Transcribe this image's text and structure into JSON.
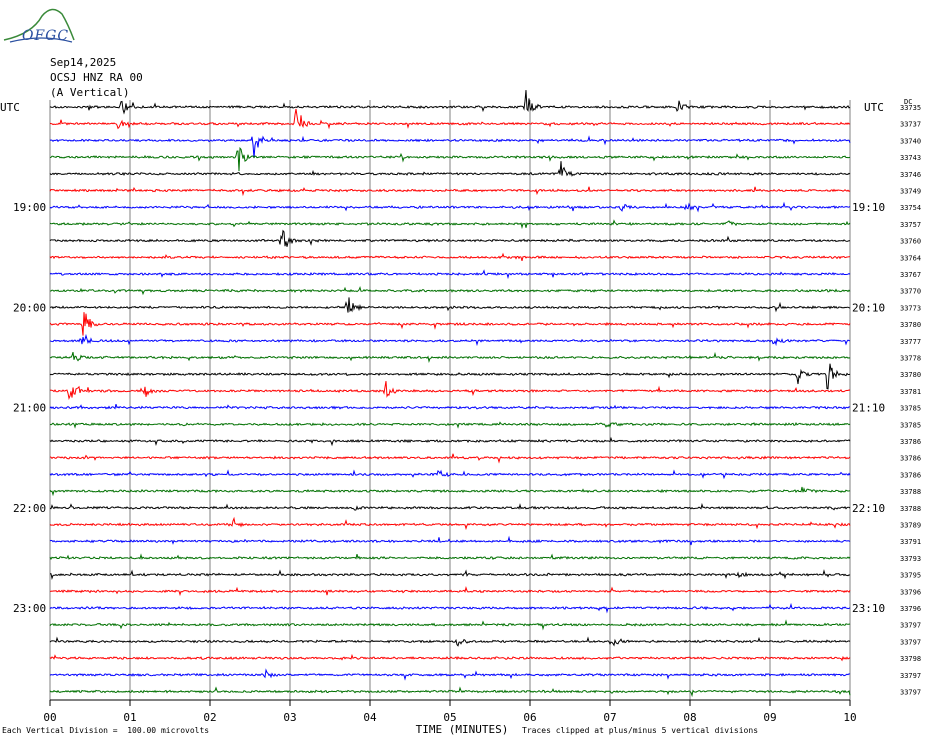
{
  "header": {
    "logo_text": "OFGC",
    "date": "Sep14,2025",
    "station": "OCSJ HNZ RA 00",
    "component": "(A Vertical)"
  },
  "axis": {
    "left_label": "UTC",
    "right_label": "UTC",
    "right_top_label": "DC",
    "xlabel": "TIME (MINUTES)",
    "xticks": [
      "00",
      "01",
      "02",
      "03",
      "04",
      "05",
      "06",
      "07",
      "08",
      "09",
      "10"
    ]
  },
  "footer": {
    "scale_note": "Each Vertical Division =  100.00 microvolts",
    "clip_note": "Traces clipped at plus/minus 5 vertical divisions"
  },
  "colors": {
    "black": "#000000",
    "red": "#ff0000",
    "blue": "#0000ff",
    "green": "#007000",
    "grid": "#808080"
  },
  "chart_data": {
    "type": "line",
    "title": "OCSJ HNZ RA 00 (A Vertical)",
    "xlabel": "TIME (MINUTES)",
    "xlim": [
      0,
      10
    ],
    "color_cycle": [
      "black",
      "red",
      "blue",
      "green"
    ],
    "traces": [
      {
        "left": "",
        "right": "",
        "dc": "33735",
        "events": [
          {
            "t": 0.9,
            "a": 8
          },
          {
            "t": 5.95,
            "a": 20
          },
          {
            "t": 7.85,
            "a": 7
          }
        ]
      },
      {
        "left": "",
        "right": "",
        "dc": "33737",
        "events": [
          {
            "t": 0.85,
            "a": 4
          },
          {
            "t": 3.08,
            "a": 22
          }
        ]
      },
      {
        "left": "",
        "right": "",
        "dc": "33740",
        "events": [
          {
            "t": 2.55,
            "a": 18
          }
        ]
      },
      {
        "left": "",
        "right": "",
        "dc": "33743",
        "events": [
          {
            "t": 2.35,
            "a": 16
          }
        ]
      },
      {
        "left": "",
        "right": "",
        "dc": "33746",
        "events": [
          {
            "t": 6.38,
            "a": 14
          }
        ]
      },
      {
        "left": "",
        "right": "",
        "dc": "33749",
        "events": []
      },
      {
        "left": "19:00",
        "right": "19:10",
        "dc": "33754",
        "events": [
          {
            "t": 7.15,
            "a": 4
          },
          {
            "t": 7.95,
            "a": 4
          }
        ]
      },
      {
        "left": "",
        "right": "",
        "dc": "33757",
        "events": [
          {
            "t": 8.45,
            "a": 5
          }
        ]
      },
      {
        "left": "",
        "right": "",
        "dc": "33760",
        "events": [
          {
            "t": 2.9,
            "a": 20
          }
        ]
      },
      {
        "left": "",
        "right": "",
        "dc": "33764",
        "events": []
      },
      {
        "left": "",
        "right": "",
        "dc": "33767",
        "events": []
      },
      {
        "left": "",
        "right": "",
        "dc": "33770",
        "events": []
      },
      {
        "left": "20:00",
        "right": "20:10",
        "dc": "33773",
        "events": [
          {
            "t": 3.72,
            "a": 14
          }
        ]
      },
      {
        "left": "",
        "right": "",
        "dc": "33780",
        "events": [
          {
            "t": 0.42,
            "a": 18
          }
        ]
      },
      {
        "left": "",
        "right": "",
        "dc": "33777",
        "events": [
          {
            "t": 0.4,
            "a": 10
          },
          {
            "t": 9.05,
            "a": 4
          }
        ]
      },
      {
        "left": "",
        "right": "",
        "dc": "33778",
        "events": [
          {
            "t": 0.3,
            "a": 8
          }
        ]
      },
      {
        "left": "",
        "right": "",
        "dc": "33780",
        "events": [
          {
            "t": 9.35,
            "a": 6
          },
          {
            "t": 9.72,
            "a": 20
          }
        ]
      },
      {
        "left": "",
        "right": "",
        "dc": "33781",
        "events": [
          {
            "t": 0.25,
            "a": 14
          },
          {
            "t": 1.2,
            "a": 8
          },
          {
            "t": 4.2,
            "a": 10
          }
        ]
      },
      {
        "left": "21:00",
        "right": "21:10",
        "dc": "33785",
        "events": []
      },
      {
        "left": "",
        "right": "",
        "dc": "33785",
        "events": [
          {
            "t": 6.95,
            "a": 5
          }
        ]
      },
      {
        "left": "",
        "right": "",
        "dc": "33786",
        "events": []
      },
      {
        "left": "",
        "right": "",
        "dc": "33786",
        "events": []
      },
      {
        "left": "",
        "right": "",
        "dc": "33786",
        "events": [
          {
            "t": 4.85,
            "a": 8
          }
        ]
      },
      {
        "left": "",
        "right": "",
        "dc": "33788",
        "events": [
          {
            "t": 9.4,
            "a": 4
          }
        ]
      },
      {
        "left": "22:00",
        "right": "22:10",
        "dc": "33788",
        "events": [
          {
            "t": 3.8,
            "a": 3
          }
        ]
      },
      {
        "left": "",
        "right": "",
        "dc": "33789",
        "events": [
          {
            "t": 2.3,
            "a": 6
          }
        ]
      },
      {
        "left": "",
        "right": "",
        "dc": "33791",
        "events": []
      },
      {
        "left": "",
        "right": "",
        "dc": "33793",
        "events": []
      },
      {
        "left": "",
        "right": "",
        "dc": "33795",
        "events": [
          {
            "t": 8.6,
            "a": 3
          }
        ]
      },
      {
        "left": "",
        "right": "",
        "dc": "33796",
        "events": []
      },
      {
        "left": "23:00",
        "right": "23:10",
        "dc": "33796",
        "events": []
      },
      {
        "left": "",
        "right": "",
        "dc": "33797",
        "events": []
      },
      {
        "left": "",
        "right": "",
        "dc": "33797",
        "events": [
          {
            "t": 5.1,
            "a": 5
          },
          {
            "t": 7.05,
            "a": 4
          }
        ]
      },
      {
        "left": "",
        "right": "",
        "dc": "33798",
        "events": []
      },
      {
        "left": "",
        "right": "",
        "dc": "33797",
        "events": [
          {
            "t": 2.7,
            "a": 4
          }
        ]
      },
      {
        "left": "",
        "right": "",
        "dc": "33797",
        "events": []
      }
    ]
  }
}
